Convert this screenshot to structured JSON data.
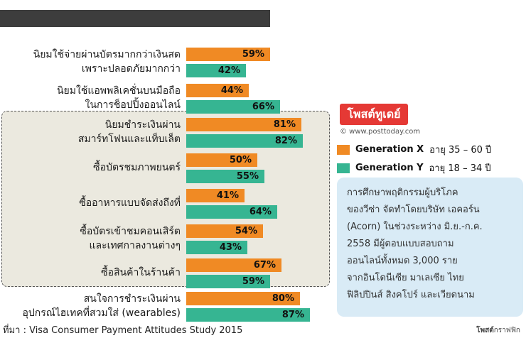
{
  "chart_data": {
    "type": "bar",
    "orientation": "horizontal",
    "xlim": [
      0,
      100
    ],
    "categories": [
      "นิยมใช้จ่ายผ่านบัตรมากกว่าเงินสด\nเพราะปลอดภัยมากกว่า",
      "นิยมใช้แอพพลิเคชั่นบนมือถือ\nในการช็อปปิ้งออนไลน์",
      "นิยมชำระเงินผ่าน\nสมาร์ทโฟนและแท็บเล็ต",
      "ซื้อบัตรชมภาพยนตร์",
      "ซื้ออาหารแบบจัดส่งถึงที่",
      "ซื้อบัตรเข้าชมคอนเสิร์ต\nและเทศกาลงานต่างๆ",
      "ซื้อสินค้าในร้านค้า",
      "สนใจการชำระเงินผ่าน\nอุปกรณ์ไฮเทคที่สวมใส่ (wearables)"
    ],
    "series": [
      {
        "name": "Generation X",
        "color": "#f08a24",
        "values": [
          59,
          44,
          81,
          50,
          41,
          54,
          67,
          80
        ],
        "labels": [
          "59%",
          "44%",
          "81%",
          "50%",
          "41%",
          "54%",
          "67%",
          "80%"
        ]
      },
      {
        "name": "Generation Y",
        "color": "#36b592",
        "values": [
          42,
          66,
          82,
          55,
          64,
          43,
          59,
          87
        ],
        "labels": [
          "42%",
          "66%",
          "82%",
          "55%",
          "64%",
          "43%",
          "59%",
          "87%"
        ]
      }
    ]
  },
  "legend": [
    {
      "name": "Generation X",
      "range": "อายุ 35 – 60 ปี",
      "color": "#f08a24"
    },
    {
      "name": "Generation Y",
      "range": "อายุ 18 – 34 ปี",
      "color": "#36b592"
    }
  ],
  "note": [
    "การศึกษาพฤติกรรมผู้บริโภค",
    "ของวีซ่า จัดทำโดยบริษัท เอคอร์น",
    "(Acorn) ในช่วงระหว่าง มิ.ย.-ก.ค.",
    "2558 มีผู้ตอบแบบสอบถาม",
    "ออนไลน์ทั้งหมด 3,000 ราย",
    "จากอินโดนีเซีย มาเลเซีย ไทย",
    "ฟิลิปปินส์ สิงคโปร์ และเวียดนาม"
  ],
  "brand": "โพสต์ทูเดย์",
  "site": "© www.posttoday.com",
  "source": "ที่มา : Visa Consumer Payment Attitudes Study 2015",
  "credit_bold": "โพสต์",
  "credit_rest": "กราฟฟิก"
}
